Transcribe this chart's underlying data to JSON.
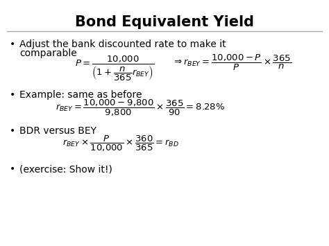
{
  "title": "Bond Equivalent Yield",
  "slide_bg": "#ffffff",
  "title_fontsize": 15,
  "body_fontsize": 10,
  "bullet1_line1": "Adjust the bank discounted rate to make it",
  "bullet1_line2": "comparable",
  "bullet2_text": "Example: same as before",
  "bullet3_text": "BDR versus BEY",
  "bullet4_text": "(exercise: Show it!)",
  "formula1a": "$P = \\dfrac{10{,}000}{\\left(1+\\dfrac{n}{365}r_{BEY}\\right)}$",
  "formula1b": "$\\Rightarrow r_{BEY} = \\dfrac{10{,}000 - P}{P} \\times \\dfrac{365}{n}$",
  "formula2": "$r_{BEY} = \\dfrac{10{,}000 - 9{,}800}{9{,}800} \\times \\dfrac{365}{90} = 8.28\\%$",
  "formula3": "$r_{BEY} \\times \\dfrac{P}{10{,}000} \\times \\dfrac{360}{365} = r_{BD}$",
  "line_color": "#aaaaaa",
  "text_color": "#000000"
}
